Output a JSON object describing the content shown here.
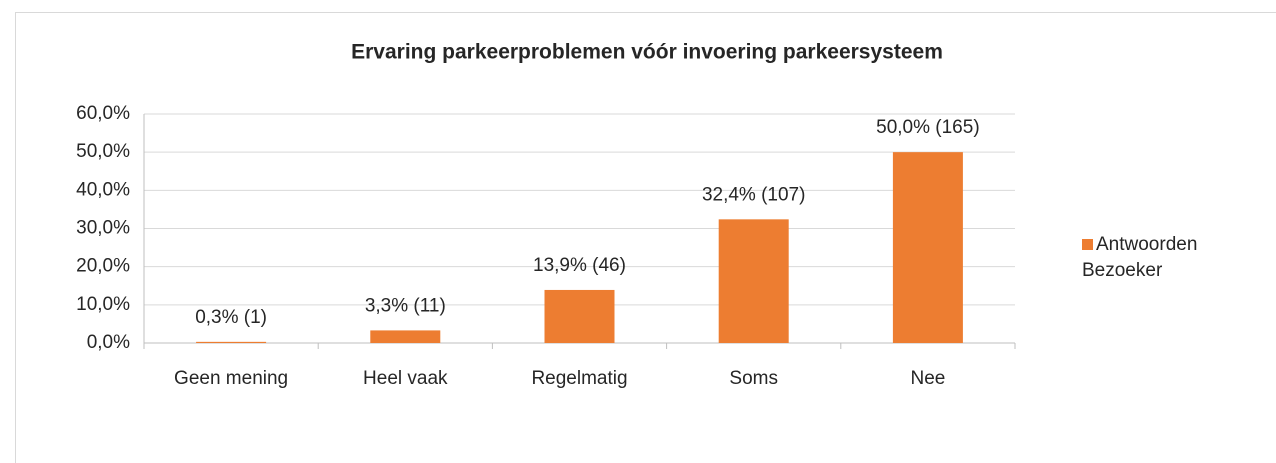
{
  "chart_data": {
    "type": "bar",
    "title": "Ervaring parkeerproblemen vóór invoering parkeersysteem",
    "categories": [
      "Geen mening",
      "Heel vaak",
      "Regelmatig",
      "Soms",
      "Nee"
    ],
    "series": [
      {
        "name": "Antwoorden Bezoeker",
        "color": "#ed7d31",
        "values": [
          0.3,
          3.3,
          13.9,
          32.4,
          50.0
        ],
        "value_labels": [
          "0,3% (1)",
          "3,3% (11)",
          "13,9% (46)",
          "32,4% (107)",
          "50,0% (165)"
        ]
      }
    ],
    "ylim": [
      0,
      60
    ],
    "yticks": [
      {
        "value": 0,
        "label": "0,0%"
      },
      {
        "value": 10,
        "label": "10,0%"
      },
      {
        "value": 20,
        "label": "20,0%"
      },
      {
        "value": 30,
        "label": "30,0%"
      },
      {
        "value": 40,
        "label": "40,0%"
      },
      {
        "value": 50,
        "label": "50,0%"
      },
      {
        "value": 60,
        "label": "60,0%"
      }
    ],
    "grid": true,
    "legend": "right"
  }
}
